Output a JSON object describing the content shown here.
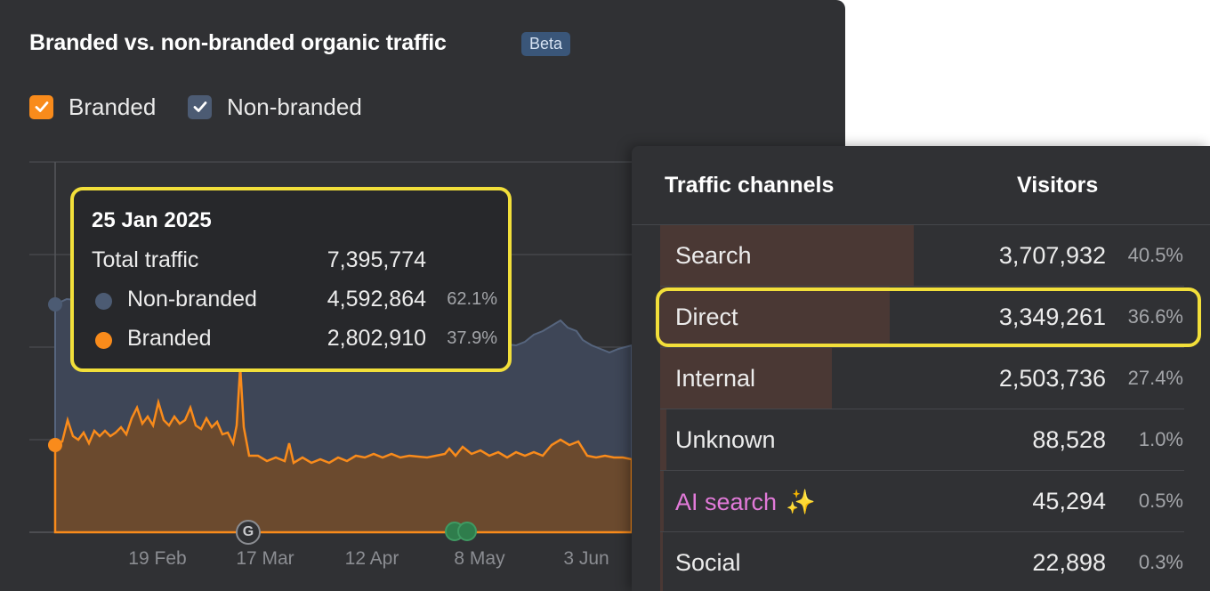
{
  "chart_panel": {
    "title": "Branded vs. non-branded organic traffic",
    "badge": "Beta",
    "legend": [
      {
        "label": "Branded",
        "color": "#f98b1b",
        "checked": true
      },
      {
        "label": "Non-branded",
        "color": "#4c5b73",
        "checked": true
      }
    ],
    "marker_g": "G"
  },
  "chart_data": {
    "type": "area",
    "x_ticks": [
      "19 Feb",
      "17 Mar",
      "12 Apr",
      "8 May",
      "3 Jun"
    ],
    "series": [
      {
        "name": "Non-branded",
        "color": "#4c5b73"
      },
      {
        "name": "Branded",
        "color": "#f98b1b"
      }
    ]
  },
  "tooltip": {
    "date": "25 Jan 2025",
    "total_label": "Total traffic",
    "total_value": "7,395,774",
    "rows": [
      {
        "label": "Non-branded",
        "value": "4,592,864",
        "pct": "62.1%",
        "color": "#4c5b73"
      },
      {
        "label": "Branded",
        "value": "2,802,910",
        "pct": "37.9%",
        "color": "#f98b1b"
      }
    ]
  },
  "table": {
    "col_channel": "Traffic channels",
    "col_visitors": "Visitors",
    "rows": [
      {
        "label": "Search",
        "value": "3,707,932",
        "pct": "40.5%",
        "share": 40.5
      },
      {
        "label": "Direct",
        "value": "3,349,261",
        "pct": "36.6%",
        "share": 36.6
      },
      {
        "label": "Internal",
        "value": "2,503,736",
        "pct": "27.4%",
        "share": 27.4
      },
      {
        "label": "Unknown",
        "value": "88,528",
        "pct": "1.0%",
        "share": 1.0
      },
      {
        "label": "AI search",
        "value": "45,294",
        "pct": "0.5%",
        "share": 0.5,
        "icon": "sparkles-icon"
      },
      {
        "label": "Social",
        "value": "22,898",
        "pct": "0.3%",
        "share": 0.3
      }
    ]
  },
  "colors": {
    "highlight": "#f2df3a",
    "branded": "#f98b1b",
    "non_branded": "#4c5b73",
    "ai_search": "#e27ad9"
  }
}
